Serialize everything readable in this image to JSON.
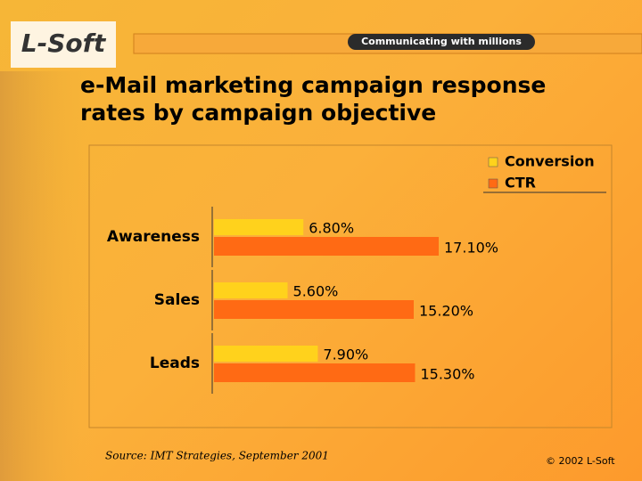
{
  "header": {
    "logo": "L-Soft",
    "tagline": "Communicating with millions"
  },
  "chart_data": {
    "type": "hbar",
    "title": "e-Mail marketing campaign response rates by campaign objective",
    "categories": [
      "Awareness",
      "Sales",
      "Leads"
    ],
    "series": [
      {
        "name": "Conversion",
        "color": "#ffd21c",
        "values": [
          6.8,
          5.6,
          7.9
        ],
        "value_labels": [
          "6.80%",
          "5.60%",
          "7.90%"
        ]
      },
      {
        "name": "CTR",
        "color": "#ff6a14",
        "values": [
          17.1,
          15.2,
          15.3
        ],
        "value_labels": [
          "17.10%",
          "15.20%",
          "15.30%"
        ]
      }
    ],
    "legend": "top-right"
  },
  "footer": {
    "source": "Source: IMT Strategies, September 2001",
    "copyright": "© 2002 L-Soft"
  }
}
